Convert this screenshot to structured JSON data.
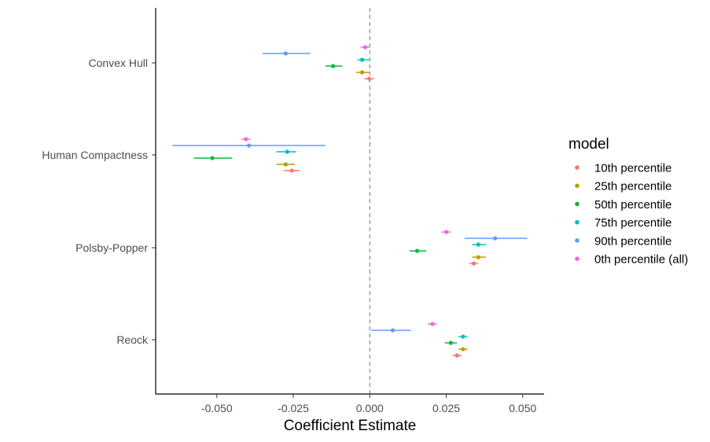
{
  "chart_data": {
    "type": "scatter",
    "subtype": "coefficient-plot",
    "title": "",
    "xlabel": "Coefficient Estimate",
    "ylabel": "",
    "xlim": [
      -0.07,
      0.057
    ],
    "x_ticks": [
      -0.05,
      -0.025,
      0.0,
      0.025,
      0.05
    ],
    "x_tick_labels": [
      "-0.050",
      "-0.025",
      "0.000",
      "0.025",
      "0.050"
    ],
    "categories": [
      "Convex Hull",
      "Human Compactness",
      "Polsby-Popper",
      "Reock"
    ],
    "reference_line_x": 0,
    "grid": false,
    "legend_title": "model",
    "legend_position": "right",
    "series": [
      {
        "name": "10th percentile",
        "color": "#F8766D",
        "values": [
          -0.0002,
          -0.0255,
          0.034,
          0.0285
        ],
        "lower": [
          -0.0018,
          -0.028,
          0.0325,
          0.027
        ],
        "upper": [
          0.0015,
          -0.023,
          0.0355,
          0.03
        ]
      },
      {
        "name": "25th percentile",
        "color": "#B79F00",
        "values": [
          -0.0025,
          -0.0275,
          0.0355,
          0.0305
        ],
        "lower": [
          -0.0045,
          -0.0305,
          0.0335,
          0.029
        ],
        "upper": [
          -0.0002,
          -0.0245,
          0.038,
          0.032
        ]
      },
      {
        "name": "50th percentile",
        "color": "#00BA38",
        "values": [
          -0.012,
          -0.0515,
          0.0155,
          0.0265
        ],
        "lower": [
          -0.0145,
          -0.0575,
          0.013,
          0.0245
        ],
        "upper": [
          -0.009,
          -0.045,
          0.0185,
          0.0285
        ]
      },
      {
        "name": "75th percentile",
        "color": "#00BFC4",
        "values": [
          -0.0025,
          -0.027,
          0.0355,
          0.0305
        ],
        "lower": [
          -0.004,
          -0.0305,
          0.0335,
          0.029
        ],
        "upper": [
          -0.0002,
          -0.024,
          0.038,
          0.032
        ]
      },
      {
        "name": "90th percentile",
        "color": "#619CFF",
        "values": [
          -0.0275,
          -0.0395,
          0.041,
          0.0075
        ],
        "lower": [
          -0.035,
          -0.0645,
          0.031,
          0.0005
        ],
        "upper": [
          -0.0195,
          -0.0145,
          0.0515,
          0.0135
        ]
      },
      {
        "name": "0th percentile (all)",
        "color": "#F564E3",
        "values": [
          -0.0015,
          -0.0405,
          0.025,
          0.0205
        ],
        "lower": [
          -0.003,
          -0.042,
          0.0235,
          0.019
        ],
        "upper": [
          0.0,
          -0.039,
          0.0265,
          0.022
        ]
      }
    ]
  }
}
